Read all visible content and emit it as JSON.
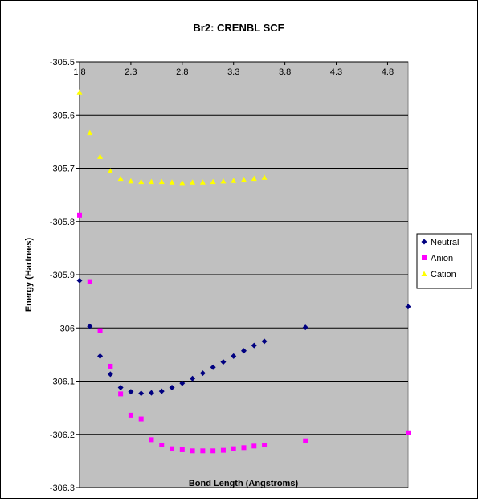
{
  "chart_data": {
    "type": "scatter",
    "title": "Br2: CRENBL SCF",
    "xlabel": "Bond Length (Angstroms)",
    "ylabel": "Energy (Hartrees)",
    "xlim": [
      1.8,
      5.0
    ],
    "ylim": [
      -306.3,
      -305.5
    ],
    "x_ticks": [
      1.8,
      2.3,
      2.8,
      3.3,
      3.8,
      4.3,
      4.8
    ],
    "x_tick_labels": [
      "1.8",
      "2.3",
      "2.8",
      "3.3",
      "3.8",
      "4.3",
      "4.8"
    ],
    "y_ticks": [
      -305.5,
      -305.6,
      -305.7,
      -305.8,
      -305.9,
      -306,
      -306.1,
      -306.2,
      -306.3
    ],
    "y_tick_labels": [
      "-305.5",
      "-305.6",
      "-305.7",
      "-305.8",
      "-305.9",
      "-306",
      "-306.1",
      "-306.2",
      "-306.3"
    ],
    "x_axis_position": "top",
    "grid": "horizontal",
    "plot_background": "#c0c0c0",
    "legend_position": "right",
    "series": [
      {
        "name": "Neutral",
        "marker": "diamond",
        "color": "#000080",
        "points": [
          [
            1.8,
            -305.911
          ],
          [
            1.9,
            -305.997
          ],
          [
            2.0,
            -306.053
          ],
          [
            2.1,
            -306.087
          ],
          [
            2.2,
            -306.112
          ],
          [
            2.3,
            -306.12
          ],
          [
            2.4,
            -306.123
          ],
          [
            2.5,
            -306.122
          ],
          [
            2.6,
            -306.119
          ],
          [
            2.7,
            -306.112
          ],
          [
            2.8,
            -306.104
          ],
          [
            2.9,
            -306.095
          ],
          [
            3.0,
            -306.085
          ],
          [
            3.1,
            -306.074
          ],
          [
            3.2,
            -306.064
          ],
          [
            3.3,
            -306.053
          ],
          [
            3.4,
            -306.043
          ],
          [
            3.5,
            -306.033
          ],
          [
            3.6,
            -306.025
          ],
          [
            4.0,
            -305.999
          ],
          [
            5.0,
            -305.96
          ]
        ]
      },
      {
        "name": "Anion",
        "marker": "square",
        "color": "#ff00ff",
        "points": [
          [
            1.8,
            -305.788
          ],
          [
            1.9,
            -305.913
          ],
          [
            2.0,
            -306.005
          ],
          [
            2.1,
            -306.072
          ],
          [
            2.2,
            -306.124
          ],
          [
            2.3,
            -306.164
          ],
          [
            2.4,
            -306.171
          ],
          [
            2.5,
            -306.21
          ],
          [
            2.6,
            -306.22
          ],
          [
            2.7,
            -306.227
          ],
          [
            2.8,
            -306.229
          ],
          [
            2.9,
            -306.231
          ],
          [
            3.0,
            -306.231
          ],
          [
            3.1,
            -306.231
          ],
          [
            3.2,
            -306.23
          ],
          [
            3.3,
            -306.227
          ],
          [
            3.4,
            -306.225
          ],
          [
            3.5,
            -306.222
          ],
          [
            3.6,
            -306.22
          ],
          [
            4.0,
            -306.212
          ],
          [
            5.0,
            -306.197
          ]
        ]
      },
      {
        "name": "Cation",
        "marker": "triangle",
        "color": "#ffff00",
        "points": [
          [
            1.8,
            -305.557
          ],
          [
            1.9,
            -305.633
          ],
          [
            2.0,
            -305.678
          ],
          [
            2.1,
            -305.705
          ],
          [
            2.2,
            -305.719
          ],
          [
            2.3,
            -305.724
          ],
          [
            2.4,
            -305.725
          ],
          [
            2.5,
            -305.725
          ],
          [
            2.6,
            -305.725
          ],
          [
            2.7,
            -305.726
          ],
          [
            2.8,
            -305.727
          ],
          [
            2.9,
            -305.726
          ],
          [
            3.0,
            -305.726
          ],
          [
            3.1,
            -305.725
          ],
          [
            3.2,
            -305.724
          ],
          [
            3.3,
            -305.723
          ],
          [
            3.4,
            -305.721
          ],
          [
            3.5,
            -305.719
          ],
          [
            3.6,
            -305.717
          ]
        ]
      }
    ]
  }
}
